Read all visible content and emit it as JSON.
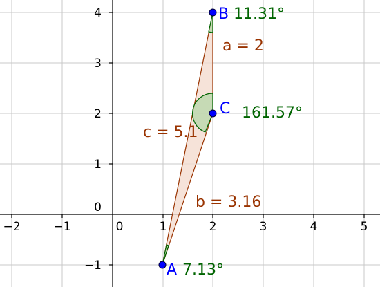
{
  "axes": {
    "x_ticks": [
      "−2",
      "−1",
      "0",
      "1",
      "2",
      "3",
      "4",
      "5"
    ],
    "y_ticks": [
      "4",
      "3",
      "2",
      "1",
      "0",
      "−1"
    ]
  },
  "points": {
    "A": {
      "label": "A",
      "angle": "7.13°",
      "x": 1,
      "y": -1
    },
    "B": {
      "label": "B",
      "angle": "11.31°",
      "x": 2,
      "y": 4
    },
    "C": {
      "label": "C",
      "angle": "161.57°",
      "x": 2,
      "y": 2
    }
  },
  "sides": {
    "a": "a = 2",
    "b": "b = 3.16",
    "c": "c = 5.1"
  },
  "colors": {
    "point": "#0000ff",
    "angle": "#006400",
    "side": "#993300",
    "triangle_fill": "#f4dcd0",
    "triangle_stroke": "#993300",
    "angle_fill": "#b6d7a8"
  }
}
